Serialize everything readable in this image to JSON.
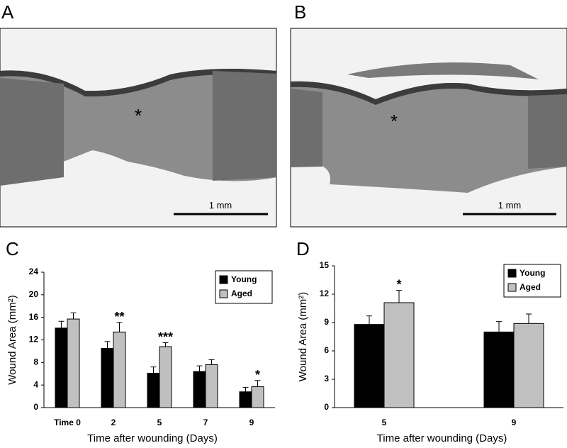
{
  "images": [
    {
      "panel": "A",
      "marker": "*",
      "scale_bar": "1 mm"
    },
    {
      "panel": "B",
      "marker": "*",
      "scale_bar": "1 mm"
    }
  ],
  "chart_data": [
    {
      "type": "bar",
      "panel": "C",
      "ylabel": "Wound Area (mm²)",
      "xlabel": "Time after wounding (Days)",
      "categories": [
        "Time 0",
        "2",
        "5",
        "7",
        "9"
      ],
      "ylim": [
        0,
        24
      ],
      "yticks": [
        0,
        4,
        8,
        12,
        16,
        20,
        24
      ],
      "legend": "upper right",
      "series": [
        {
          "name": "Young",
          "color": "#000000",
          "values": [
            14.1,
            10.5,
            6.1,
            6.4,
            2.8
          ],
          "errors": [
            1.2,
            1.2,
            1.1,
            1.0,
            0.8
          ]
        },
        {
          "name": "Aged",
          "color": "#c0c0c0",
          "values": [
            15.7,
            13.4,
            10.8,
            7.6,
            3.7
          ],
          "errors": [
            1.1,
            1.7,
            0.7,
            0.9,
            1.1
          ],
          "significance": [
            null,
            "**",
            "***",
            null,
            "*"
          ]
        }
      ]
    },
    {
      "type": "bar",
      "panel": "D",
      "ylabel": "Wound Area (mm²)",
      "xlabel": "Time after wounding (Days)",
      "categories": [
        "5",
        "9"
      ],
      "ylim": [
        0,
        15
      ],
      "yticks": [
        0,
        3,
        6,
        9,
        12,
        15
      ],
      "legend": "upper right",
      "series": [
        {
          "name": "Young",
          "color": "#000000",
          "values": [
            8.8,
            8.0
          ],
          "errors": [
            0.9,
            1.1
          ]
        },
        {
          "name": "Aged",
          "color": "#c0c0c0",
          "values": [
            11.1,
            8.9
          ],
          "errors": [
            1.3,
            1.0
          ],
          "significance": [
            "*",
            null
          ]
        }
      ]
    }
  ]
}
